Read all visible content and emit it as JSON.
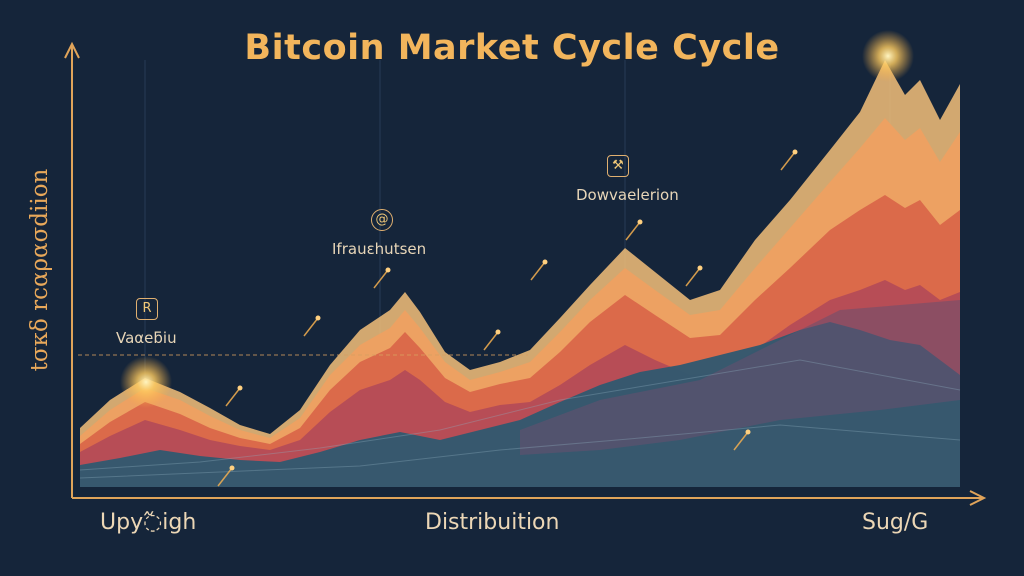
{
  "chart_data": {
    "type": "area",
    "title": "Bitcoin Market Cycle  Cycle",
    "ylabel": "tσκδ rcαρασdiion",
    "xlabel": "",
    "x_phase_labels": [
      "Upy߬igh",
      "Distribuition",
      "Sug/G"
    ],
    "annotations": [
      {
        "label": "Vaαeƃiu",
        "icon": "R"
      },
      {
        "label": "Ifrauεhutsen",
        "icon": "@"
      },
      {
        "label": "Dowvaelerion",
        "icon": "⚒"
      }
    ],
    "legend": "none",
    "grid": "faint vertical",
    "colors": [
      "#2f5870",
      "#6a5070",
      "#b04858",
      "#d86448",
      "#f0a060",
      "#f3c07a"
    ]
  }
}
